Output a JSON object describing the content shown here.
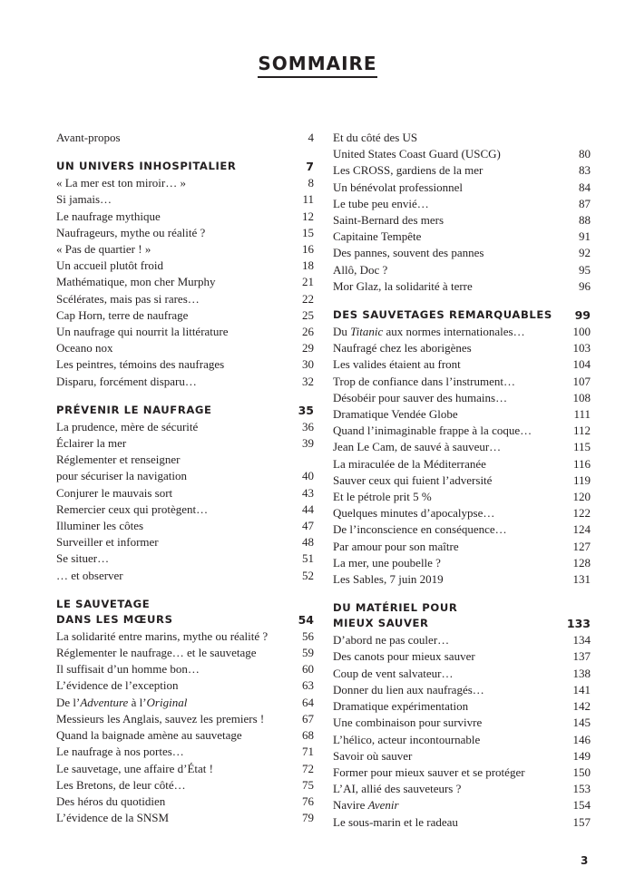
{
  "page_title": "SOMMAIRE",
  "folio": "3",
  "columns": [
    {
      "sections": [
        {
          "entries": [
            {
              "lines": [
                [
                  {
                    "t": "Avant-propos"
                  }
                ]
              ],
              "page": "4"
            }
          ]
        },
        {
          "heading": {
            "lines": [
              "UN UNIVERS INHOSPITALIER"
            ],
            "page": "7"
          },
          "entries": [
            {
              "lines": [
                [
                  {
                    "t": "« La mer est ton miroir… »"
                  }
                ]
              ],
              "page": "8"
            },
            {
              "lines": [
                [
                  {
                    "t": "Si jamais…"
                  }
                ]
              ],
              "page": "11"
            },
            {
              "lines": [
                [
                  {
                    "t": "Le naufrage mythique"
                  }
                ]
              ],
              "page": "12"
            },
            {
              "lines": [
                [
                  {
                    "t": "Naufrageurs, mythe ou réalité ?"
                  }
                ]
              ],
              "page": "15"
            },
            {
              "lines": [
                [
                  {
                    "t": "« Pas de quartier ! »"
                  }
                ]
              ],
              "page": "16"
            },
            {
              "lines": [
                [
                  {
                    "t": "Un accueil plutôt froid"
                  }
                ]
              ],
              "page": "18"
            },
            {
              "lines": [
                [
                  {
                    "t": "Mathématique, mon cher Murphy"
                  }
                ]
              ],
              "page": "21"
            },
            {
              "lines": [
                [
                  {
                    "t": "Scélérates, mais pas si rares…"
                  }
                ]
              ],
              "page": "22"
            },
            {
              "lines": [
                [
                  {
                    "t": "Cap Horn, terre de naufrage"
                  }
                ]
              ],
              "page": "25"
            },
            {
              "lines": [
                [
                  {
                    "t": "Un naufrage qui nourrit la littérature"
                  }
                ]
              ],
              "page": "26"
            },
            {
              "lines": [
                [
                  {
                    "t": "Oceano nox"
                  }
                ]
              ],
              "page": "29"
            },
            {
              "lines": [
                [
                  {
                    "t": "Les peintres, témoins des naufrages"
                  }
                ]
              ],
              "page": "30"
            },
            {
              "lines": [
                [
                  {
                    "t": "Disparu, forcément disparu…"
                  }
                ]
              ],
              "page": "32"
            }
          ]
        },
        {
          "heading": {
            "lines": [
              "PRÉVENIR LE NAUFRAGE"
            ],
            "page": "35"
          },
          "entries": [
            {
              "lines": [
                [
                  {
                    "t": "La prudence, mère de sécurité"
                  }
                ]
              ],
              "page": "36"
            },
            {
              "lines": [
                [
                  {
                    "t": "Éclairer la mer"
                  }
                ]
              ],
              "page": "39"
            },
            {
              "lines": [
                [
                  {
                    "t": "Réglementer et renseigner"
                  }
                ],
                [
                  {
                    "t": "pour sécuriser la navigation"
                  }
                ]
              ],
              "page": "40"
            },
            {
              "lines": [
                [
                  {
                    "t": "Conjurer le mauvais sort"
                  }
                ]
              ],
              "page": "43"
            },
            {
              "lines": [
                [
                  {
                    "t": "Remercier ceux qui protègent…"
                  }
                ]
              ],
              "page": "44"
            },
            {
              "lines": [
                [
                  {
                    "t": "Illuminer les côtes"
                  }
                ]
              ],
              "page": "47"
            },
            {
              "lines": [
                [
                  {
                    "t": "Surveiller et informer"
                  }
                ]
              ],
              "page": "48"
            },
            {
              "lines": [
                [
                  {
                    "t": "Se situer…"
                  }
                ]
              ],
              "page": "51"
            },
            {
              "lines": [
                [
                  {
                    "t": "… et observer"
                  }
                ]
              ],
              "page": "52"
            }
          ]
        },
        {
          "heading": {
            "lines": [
              "LE SAUVETAGE",
              "DANS LES MŒURS"
            ],
            "page": "54"
          },
          "entries": [
            {
              "lines": [
                [
                  {
                    "t": "La solidarité entre marins, mythe ou réalité ?"
                  }
                ]
              ],
              "page": "56"
            },
            {
              "lines": [
                [
                  {
                    "t": "Réglementer le naufrage… et le sauvetage"
                  }
                ]
              ],
              "page": "59"
            },
            {
              "lines": [
                [
                  {
                    "t": "Il suffisait d’un homme bon…"
                  }
                ]
              ],
              "page": "60"
            },
            {
              "lines": [
                [
                  {
                    "t": "L’évidence de l’exception"
                  }
                ]
              ],
              "page": "63"
            },
            {
              "lines": [
                [
                  {
                    "t": "De l’"
                  },
                  {
                    "t": "Adventure",
                    "i": true
                  },
                  {
                    "t": " à l’"
                  },
                  {
                    "t": "Original",
                    "i": true
                  }
                ]
              ],
              "page": "64"
            },
            {
              "lines": [
                [
                  {
                    "t": "Messieurs les Anglais, sauvez les premiers !"
                  }
                ]
              ],
              "page": "67"
            },
            {
              "lines": [
                [
                  {
                    "t": "Quand la baignade amène au sauvetage"
                  }
                ]
              ],
              "page": "68"
            },
            {
              "lines": [
                [
                  {
                    "t": "Le naufrage à nos portes…"
                  }
                ]
              ],
              "page": "71"
            },
            {
              "lines": [
                [
                  {
                    "t": "Le sauvetage, une affaire d’État !"
                  }
                ]
              ],
              "page": "72"
            },
            {
              "lines": [
                [
                  {
                    "t": "Les Bretons, de leur côté…"
                  }
                ]
              ],
              "page": "75"
            },
            {
              "lines": [
                [
                  {
                    "t": "Des héros du quotidien"
                  }
                ]
              ],
              "page": "76"
            },
            {
              "lines": [
                [
                  {
                    "t": "L’évidence de la SNSM"
                  }
                ]
              ],
              "page": "79"
            }
          ]
        }
      ]
    },
    {
      "sections": [
        {
          "entries": [
            {
              "lines": [
                [
                  {
                    "t": "Et du côté des US"
                  }
                ],
                [
                  {
                    "t": "United States Coast Guard (USCG)"
                  }
                ]
              ],
              "page": "80"
            },
            {
              "lines": [
                [
                  {
                    "t": "Les CROSS, gardiens de la mer"
                  }
                ]
              ],
              "page": "83"
            },
            {
              "lines": [
                [
                  {
                    "t": "Un bénévolat professionnel"
                  }
                ]
              ],
              "page": "84"
            },
            {
              "lines": [
                [
                  {
                    "t": "Le tube peu envié…"
                  }
                ]
              ],
              "page": "87"
            },
            {
              "lines": [
                [
                  {
                    "t": "Saint-Bernard des mers"
                  }
                ]
              ],
              "page": "88"
            },
            {
              "lines": [
                [
                  {
                    "t": "Capitaine Tempête"
                  }
                ]
              ],
              "page": "91"
            },
            {
              "lines": [
                [
                  {
                    "t": "Des pannes, souvent des pannes"
                  }
                ]
              ],
              "page": "92"
            },
            {
              "lines": [
                [
                  {
                    "t": "Allô, Doc ?"
                  }
                ]
              ],
              "page": "95"
            },
            {
              "lines": [
                [
                  {
                    "t": "Mor Glaz, la solidarité à terre"
                  }
                ]
              ],
              "page": "96"
            }
          ]
        },
        {
          "heading": {
            "lines": [
              "DES SAUVETAGES REMARQUABLES"
            ],
            "page": "99"
          },
          "entries": [
            {
              "lines": [
                [
                  {
                    "t": "Du "
                  },
                  {
                    "t": "Titanic",
                    "i": true
                  },
                  {
                    "t": " aux normes internationales…"
                  }
                ]
              ],
              "page": "100"
            },
            {
              "lines": [
                [
                  {
                    "t": "Naufragé chez les aborigènes"
                  }
                ]
              ],
              "page": "103"
            },
            {
              "lines": [
                [
                  {
                    "t": "Les valides étaient au front"
                  }
                ]
              ],
              "page": "104"
            },
            {
              "lines": [
                [
                  {
                    "t": "Trop de confiance dans l’instrument…"
                  }
                ]
              ],
              "page": "107"
            },
            {
              "lines": [
                [
                  {
                    "t": "Désobéir pour sauver des humains…"
                  }
                ]
              ],
              "page": "108"
            },
            {
              "lines": [
                [
                  {
                    "t": "Dramatique Vendée Globe"
                  }
                ]
              ],
              "page": "111"
            },
            {
              "lines": [
                [
                  {
                    "t": "Quand l’inimaginable frappe à la coque…"
                  }
                ]
              ],
              "page": "112"
            },
            {
              "lines": [
                [
                  {
                    "t": "Jean Le Cam, de sauvé à sauveur…"
                  }
                ]
              ],
              "page": "115"
            },
            {
              "lines": [
                [
                  {
                    "t": "La miraculée de la Méditerranée"
                  }
                ]
              ],
              "page": "116"
            },
            {
              "lines": [
                [
                  {
                    "t": "Sauver ceux qui fuient l’adversité"
                  }
                ]
              ],
              "page": "119"
            },
            {
              "lines": [
                [
                  {
                    "t": "Et le pétrole prit 5 %"
                  }
                ]
              ],
              "page": "120"
            },
            {
              "lines": [
                [
                  {
                    "t": "Quelques minutes d’apocalypse…"
                  }
                ]
              ],
              "page": "122"
            },
            {
              "lines": [
                [
                  {
                    "t": "De l’inconscience en conséquence…"
                  }
                ]
              ],
              "page": "124"
            },
            {
              "lines": [
                [
                  {
                    "t": "Par amour pour son maître"
                  }
                ]
              ],
              "page": "127"
            },
            {
              "lines": [
                [
                  {
                    "t": "La mer, une poubelle ?"
                  }
                ]
              ],
              "page": "128"
            },
            {
              "lines": [
                [
                  {
                    "t": "Les Sables, 7 juin 2019"
                  }
                ]
              ],
              "page": "131"
            }
          ]
        },
        {
          "heading": {
            "lines": [
              "DU MATÉRIEL POUR",
              "MIEUX SAUVER"
            ],
            "page": "133"
          },
          "entries": [
            {
              "lines": [
                [
                  {
                    "t": "D’abord ne pas couler…"
                  }
                ]
              ],
              "page": "134"
            },
            {
              "lines": [
                [
                  {
                    "t": "Des canots pour mieux sauver"
                  }
                ]
              ],
              "page": "137"
            },
            {
              "lines": [
                [
                  {
                    "t": "Coup de vent salvateur…"
                  }
                ]
              ],
              "page": "138"
            },
            {
              "lines": [
                [
                  {
                    "t": "Donner du lien aux naufragés…"
                  }
                ]
              ],
              "page": "141"
            },
            {
              "lines": [
                [
                  {
                    "t": "Dramatique expérimentation"
                  }
                ]
              ],
              "page": "142"
            },
            {
              "lines": [
                [
                  {
                    "t": "Une combinaison pour survivre"
                  }
                ]
              ],
              "page": "145"
            },
            {
              "lines": [
                [
                  {
                    "t": "L’hélico, acteur incontournable"
                  }
                ]
              ],
              "page": "146"
            },
            {
              "lines": [
                [
                  {
                    "t": "Savoir où sauver"
                  }
                ]
              ],
              "page": "149"
            },
            {
              "lines": [
                [
                  {
                    "t": "Former pour mieux sauver et se protéger"
                  }
                ]
              ],
              "page": "150"
            },
            {
              "lines": [
                [
                  {
                    "t": "L’AI, allié des sauveteurs ?"
                  }
                ]
              ],
              "page": "153"
            },
            {
              "lines": [
                [
                  {
                    "t": "Navire "
                  },
                  {
                    "t": "Avenir",
                    "i": true
                  }
                ]
              ],
              "page": "154"
            },
            {
              "lines": [
                [
                  {
                    "t": "Le sous-marin et le radeau"
                  }
                ]
              ],
              "page": "157"
            }
          ]
        }
      ]
    }
  ]
}
